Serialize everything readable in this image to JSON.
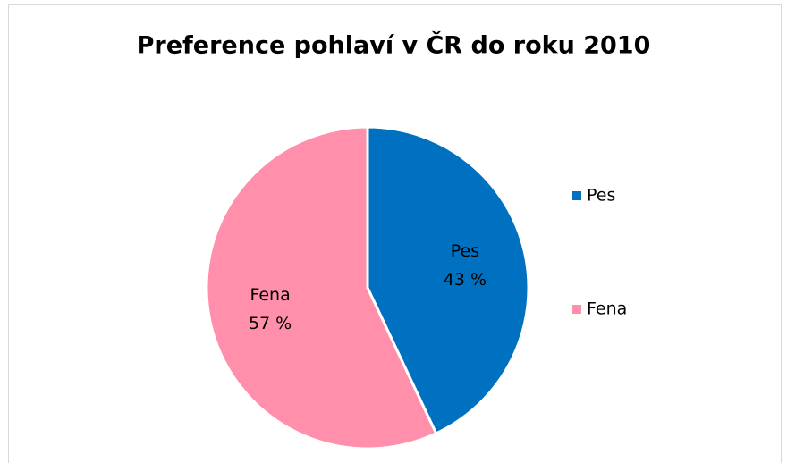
{
  "chart_data": {
    "type": "pie",
    "title": "Preference pohlaví v ČR do roku 2010",
    "categories": [
      "Pes",
      "Fena"
    ],
    "values": [
      43,
      57
    ],
    "value_labels": [
      "43 %",
      "57 %"
    ],
    "colors": [
      "#0070c0",
      "#ff8fab"
    ],
    "legend": "right"
  }
}
